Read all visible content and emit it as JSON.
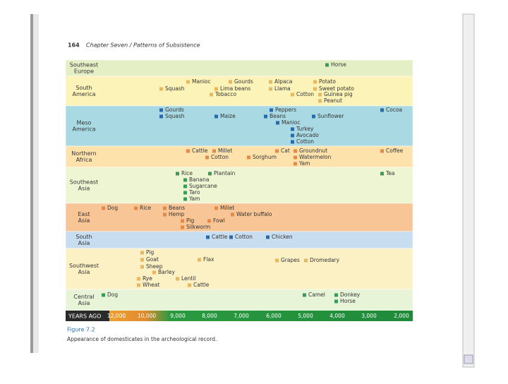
{
  "header": {
    "page_number": "164",
    "running_title": "Chapter Seven / Patterns of Subsistence"
  },
  "table": {
    "rows": [
      {
        "label": [
          "Southeast",
          "Europe"
        ],
        "items": [
          "Horse"
        ]
      },
      {
        "label": [
          "South",
          "America"
        ],
        "items": [
          "Manioc",
          "Gourds",
          "Alpaca",
          "Potato",
          "Squash",
          "Lima beans",
          "Llama",
          "Sweet potato",
          "Tobacco",
          "Cotton",
          "Guinea pig",
          "Peanut"
        ]
      },
      {
        "label": [
          "Meso",
          "America"
        ],
        "items": [
          "Gourds",
          "Peppers",
          "Cocoa",
          "Squash",
          "Maize",
          "Beans",
          "Sunflower",
          "Manioc",
          "Turkey",
          "Avocado",
          "Cotton"
        ]
      },
      {
        "label": [
          "Northern",
          "Africa"
        ],
        "items": [
          "Cattle",
          "Millet",
          "Cat",
          "Groundnut",
          "Coffee",
          "Cotton",
          "Sorghum",
          "Watermelon",
          "Yam"
        ]
      },
      {
        "label": [
          "Southeast",
          "Asia"
        ],
        "items": [
          "Rice",
          "Plantain",
          "Tea",
          "Banana",
          "Sugarcane",
          "Taro",
          "Yam"
        ]
      },
      {
        "label": [
          "East",
          "Asia"
        ],
        "items": [
          "Dog",
          "Rice",
          "Beans",
          "Millet",
          "Hemp",
          "Water buffalo",
          "Pig",
          "Fowl",
          "Silkworm"
        ]
      },
      {
        "label": [
          "South",
          "Asia"
        ],
        "items": [
          "Cattle",
          "Cotton",
          "Chicken"
        ]
      },
      {
        "label": [
          "Southwest",
          "Asia"
        ],
        "items": [
          "Pig",
          "Goat",
          "Flax",
          "Grapes",
          "Dromedary",
          "Sheep",
          "Barley",
          "Rye",
          "Lentil",
          "Wheat",
          "Cattle"
        ]
      },
      {
        "label": [
          "Central",
          "Asia"
        ],
        "items": [
          "Dog",
          "Camel",
          "Donkey",
          "Horse"
        ]
      }
    ],
    "axis": {
      "label": "YEARS AGO",
      "ticks": [
        "12,000",
        "10,000",
        "9,000",
        "8,000",
        "7,000",
        "6,000",
        "5,000",
        "4,000",
        "3,000",
        "2,000"
      ]
    }
  },
  "caption": {
    "label": "Figure 7.2",
    "text": "Appearance of domesticates in the archeological record."
  }
}
